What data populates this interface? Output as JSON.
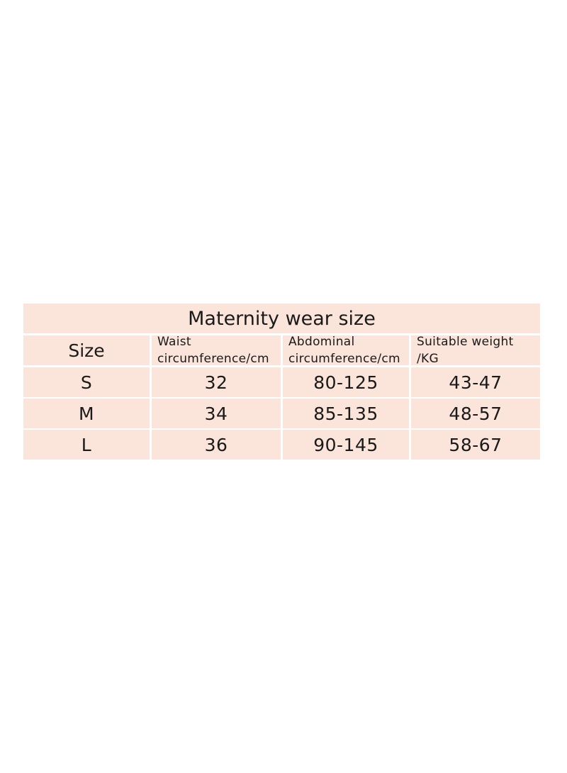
{
  "table": {
    "title": "Maternity wear size",
    "headers": {
      "size": "Size",
      "waist_line1": "Waist",
      "waist_line2": "circumference/cm",
      "abdominal_line1": "Abdominal",
      "abdominal_line2": "circumference/cm",
      "weight_line1": "Suitable weight",
      "weight_line2": "/KG"
    },
    "rows": [
      {
        "size": "S",
        "waist": "32",
        "abdominal": "80-125",
        "weight": "43-47"
      },
      {
        "size": "M",
        "waist": "34",
        "abdominal": "85-135",
        "weight": "48-57"
      },
      {
        "size": "L",
        "waist": "36",
        "abdominal": "90-145",
        "weight": "58-67"
      }
    ]
  },
  "colors": {
    "cell_background": "#fbe4d9",
    "grid_lines": "#ffffff",
    "text": "#1a1a1a"
  }
}
